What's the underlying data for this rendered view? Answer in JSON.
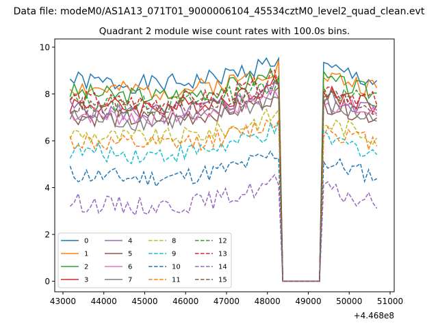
{
  "chart_data": {
    "type": "line",
    "suptitle": "Data file: modeM0/AS1A13_071T01_9000006104_45534cztM0_level2_quad_clean.evt",
    "title": "Quadrant 2 module wise count rates with 100.0s bins.",
    "xlabel": "",
    "ylabel": "",
    "x_offset_label": "+4.468e8",
    "xlim": [
      42800,
      51100
    ],
    "ylim": [
      -0.45,
      10.35
    ],
    "x_ticks": [
      43000,
      44000,
      45000,
      46000,
      47000,
      48000,
      49000,
      50000,
      51000
    ],
    "x_tick_labels": [
      "43000",
      "44000",
      "45000",
      "46000",
      "47000",
      "48000",
      "49000",
      "50000",
      "51000"
    ],
    "y_ticks": [
      0,
      2,
      4,
      6,
      8,
      10
    ],
    "y_tick_labels": [
      "0",
      "2",
      "4",
      "6",
      "8",
      "10"
    ],
    "grid": false,
    "legend": {
      "placement": "lower-left",
      "columns": 4
    },
    "time_segments": {
      "on1": [
        43175,
        48275
      ],
      "gap": [
        48375,
        49275
      ],
      "on2": [
        49375,
        50675
      ],
      "step": 100
    },
    "series": [
      {
        "name": "0",
        "level": 8.6,
        "style": "solid",
        "color": "#1f77b4"
      },
      {
        "name": "1",
        "level": 8.3,
        "style": "solid",
        "color": "#ff7f0e"
      },
      {
        "name": "2",
        "level": 8.1,
        "style": "solid",
        "color": "#2ca02c"
      },
      {
        "name": "3",
        "level": 7.6,
        "style": "solid",
        "color": "#d62728"
      },
      {
        "name": "4",
        "level": 7.4,
        "style": "solid",
        "color": "#9467bd"
      },
      {
        "name": "5",
        "level": 7.1,
        "style": "solid",
        "color": "#8c564b"
      },
      {
        "name": "6",
        "level": 7.2,
        "style": "solid",
        "color": "#e377c2"
      },
      {
        "name": "7",
        "level": 7.0,
        "style": "solid",
        "color": "#7f7f7f"
      },
      {
        "name": "8",
        "level": 6.3,
        "style": "dashed",
        "color": "#bcbd22"
      },
      {
        "name": "9",
        "level": 5.6,
        "style": "dashed",
        "color": "#17becf"
      },
      {
        "name": "10",
        "level": 4.6,
        "style": "dashed",
        "color": "#1f77b4"
      },
      {
        "name": "11",
        "level": 6.0,
        "style": "dashed",
        "color": "#ff7f0e"
      },
      {
        "name": "12",
        "level": 7.7,
        "style": "dashed",
        "color": "#2ca02c"
      },
      {
        "name": "13",
        "level": 7.8,
        "style": "dashed",
        "color": "#d62728"
      },
      {
        "name": "14",
        "level": 3.4,
        "style": "dashed",
        "color": "#9467bd"
      },
      {
        "name": "15",
        "level": 7.5,
        "style": "dashed",
        "color": "#8c564b"
      }
    ]
  }
}
